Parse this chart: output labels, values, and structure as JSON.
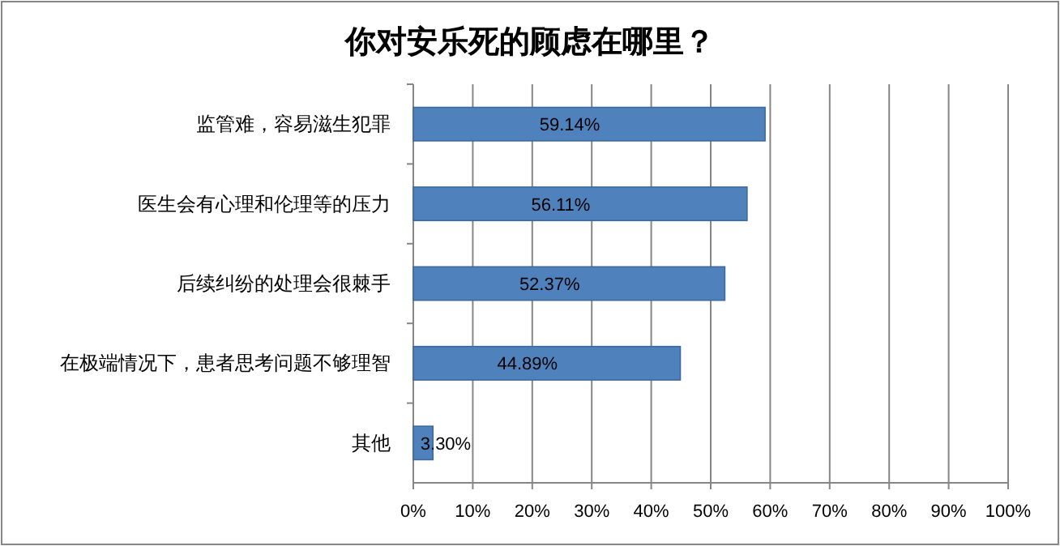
{
  "chart_data": {
    "type": "bar",
    "orientation": "horizontal",
    "title": "你对安乐死的顾虑在哪里？",
    "categories": [
      "监管难，容易滋生犯罪",
      "医生会有心理和伦理等的压力",
      "后续纠纷的处理会很棘手",
      "在极端情况下，患者思考问题不够理智",
      "其他"
    ],
    "values": [
      59.14,
      56.11,
      52.37,
      44.89,
      3.3
    ],
    "value_labels": [
      "59.14%",
      "56.11%",
      "52.37%",
      "44.89%",
      "3.30%"
    ],
    "color": "#4f81bd",
    "xlim": [
      0,
      100
    ],
    "xticks": [
      {
        "value": 0,
        "label": "0%"
      },
      {
        "value": 10,
        "label": "10%"
      },
      {
        "value": 20,
        "label": "20%"
      },
      {
        "value": 30,
        "label": "30%"
      },
      {
        "value": 40,
        "label": "40%"
      },
      {
        "value": 50,
        "label": "50%"
      },
      {
        "value": 60,
        "label": "60%"
      },
      {
        "value": 70,
        "label": "70%"
      },
      {
        "value": 80,
        "label": "80%"
      },
      {
        "value": 90,
        "label": "90%"
      },
      {
        "value": 100,
        "label": "100%"
      }
    ],
    "grid": "x"
  }
}
